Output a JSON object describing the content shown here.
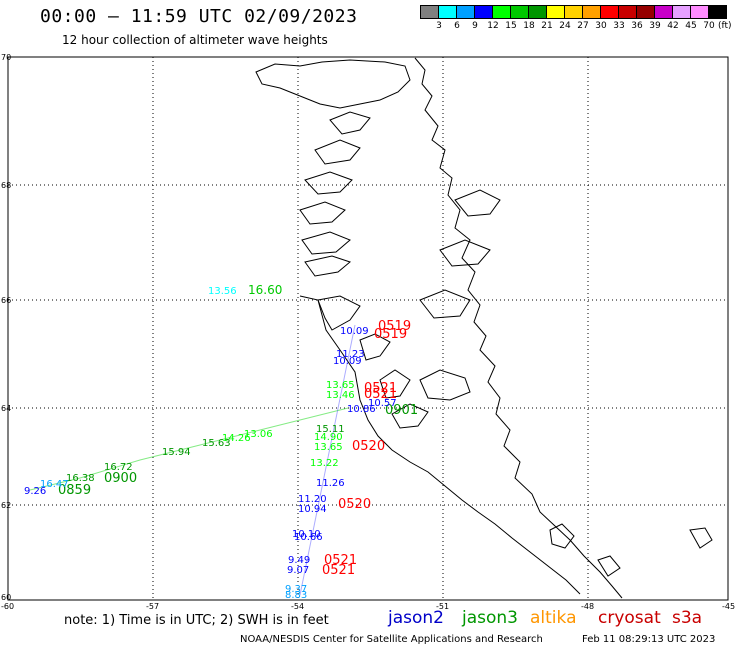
{
  "header": {
    "title": "00:00 – 11:59 UTC 02/09/2023",
    "subtitle": "12 hour collection of altimeter wave heights"
  },
  "colorbar": {
    "unit": "(ft)",
    "colors": [
      "#808080",
      "#00ffff",
      "#00a0ff",
      "#0000ff",
      "#00ff00",
      "#00c800",
      "#009600",
      "#ffff00",
      "#ffd200",
      "#ffa000",
      "#ff0000",
      "#c80000",
      "#960000",
      "#c800c8",
      "#e6a0ff",
      "#ff8cff",
      "#000000"
    ],
    "labels": [
      "3",
      "6",
      "9",
      "12",
      "15",
      "18",
      "21",
      "24",
      "27",
      "30",
      "33",
      "36",
      "39",
      "42",
      "45",
      "70"
    ]
  },
  "axes": {
    "lat_labels": [
      "70",
      "68",
      "66",
      "64",
      "62",
      "60"
    ],
    "lon_labels": [
      "-60",
      "-57",
      "-54",
      "-51",
      "-48",
      "-45"
    ]
  },
  "labels": [
    {
      "text": "0519",
      "color": "#ff0000"
    },
    {
      "text": "0519",
      "color": "#ff0000"
    },
    {
      "text": "0521",
      "color": "#ff0000"
    },
    {
      "text": "0521",
      "color": "#ff0000"
    },
    {
      "text": "0520",
      "color": "#ff0000"
    },
    {
      "text": "0520",
      "color": "#ff0000"
    },
    {
      "text": "0521",
      "color": "#ff0000"
    },
    {
      "text": "0521",
      "color": "#ff0000"
    },
    {
      "text": "0901",
      "color": "#009600"
    },
    {
      "text": "0900",
      "color": "#009600"
    },
    {
      "text": "0859",
      "color": "#009600"
    },
    {
      "text": "10.09",
      "color": "#0000ff"
    },
    {
      "text": "11.23",
      "color": "#0000ff"
    },
    {
      "text": "10.09",
      "color": "#0000ff"
    },
    {
      "text": "10.86",
      "color": "#0000ff"
    },
    {
      "text": "10.57",
      "color": "#0000ff"
    },
    {
      "text": "11.26",
      "color": "#0000ff"
    },
    {
      "text": "11.20",
      "color": "#0000ff"
    },
    {
      "text": "10.94",
      "color": "#0000ff"
    },
    {
      "text": "10.10",
      "color": "#0000ff"
    },
    {
      "text": "10.66",
      "color": "#0000ff"
    },
    {
      "text": "9.49",
      "color": "#0000ff"
    },
    {
      "text": "9.07",
      "color": "#0000ff"
    },
    {
      "text": "9.37",
      "color": "#00a0ff"
    },
    {
      "text": "8.83",
      "color": "#00a0ff"
    },
    {
      "text": "9.26",
      "color": "#0000ff"
    },
    {
      "text": "13.65",
      "color": "#00ff00"
    },
    {
      "text": "13.46",
      "color": "#00ff00"
    },
    {
      "text": "15.11",
      "color": "#009600"
    },
    {
      "text": "14.90",
      "color": "#00ff00"
    },
    {
      "text": "13.65",
      "color": "#00ff00"
    },
    {
      "text": "13.22",
      "color": "#00ff00"
    },
    {
      "text": "16.38",
      "color": "#009600"
    },
    {
      "text": "16.72",
      "color": "#009600"
    },
    {
      "text": "15.94",
      "color": "#009600"
    },
    {
      "text": "15.63",
      "color": "#009600"
    },
    {
      "text": "13.06",
      "color": "#00ff00"
    },
    {
      "text": "14.26",
      "color": "#00ff00"
    },
    {
      "text": "16.47",
      "color": "#00a0ff"
    },
    {
      "text": "13.56",
      "color": "#00ffff"
    },
    {
      "text": "16.60",
      "color": "#00c800"
    }
  ],
  "note": "note: 1) Time is in UTC; 2) SWH is in feet",
  "legend": [
    {
      "name": "jason2",
      "color": "#0000c8"
    },
    {
      "name": "jason3",
      "color": "#009600"
    },
    {
      "name": "altika",
      "color": "#ff9600"
    },
    {
      "name": "cryosat",
      "color": "#c80000"
    },
    {
      "name": "s3a",
      "color": "#c80000"
    }
  ],
  "credit": "NOAA/NESDIS Center for Satellite Applications and Research",
  "credit_time": "Feb 11 08:29:13 UTC 2023"
}
